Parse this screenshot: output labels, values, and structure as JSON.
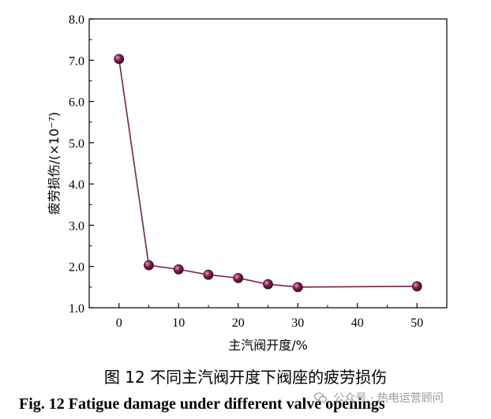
{
  "chart_data": {
    "type": "line",
    "title": "",
    "xlabel": "主汽阀开度/%",
    "ylabel": "疲劳损伤/(×10⁻⁷)",
    "xlim": [
      -5,
      55
    ],
    "ylim": [
      1.0,
      8.0
    ],
    "xticks": [
      0,
      10,
      20,
      30,
      40,
      50
    ],
    "yticks": [
      1.0,
      2.0,
      3.0,
      4.0,
      5.0,
      6.0,
      7.0,
      8.0
    ],
    "xtick_labels": [
      "0",
      "10",
      "20",
      "30",
      "40",
      "50"
    ],
    "ytick_labels": [
      "1.0",
      "2.0",
      "3.0",
      "4.0",
      "5.0",
      "6.0",
      "7.0",
      "8.0"
    ],
    "grid": false,
    "series": [
      {
        "color": "#7a1f4e",
        "x": [
          0,
          5,
          10,
          15,
          20,
          25,
          30,
          50
        ],
        "y": [
          7.03,
          2.03,
          1.93,
          1.8,
          1.72,
          1.57,
          1.5,
          1.52
        ]
      }
    ]
  },
  "caption": {
    "cn": "图 12    不同主汽阀开度下阀座的疲劳损伤",
    "en": "Fig. 12    Fatigue damage under different valve openings"
  },
  "watermark": {
    "icon": "wechat-icon",
    "text": "公众号 · 热电运营顾问"
  }
}
